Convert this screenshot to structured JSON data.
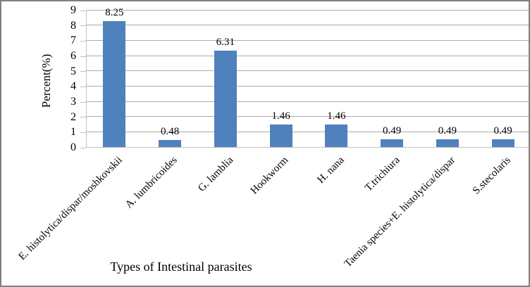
{
  "chart_data": {
    "type": "bar",
    "title": "",
    "ylabel": "Percent(%)",
    "xlabel": "Types of Intestinal parasites",
    "categories": [
      "E. histolytica/dispar/moshkovskii",
      "A. lumbricoides",
      "G. lamblia",
      "Hookworm",
      "H. nana",
      "T.trichiura",
      "Taenia species+E. histolytica/dispar",
      "S.stecolaris"
    ],
    "values": [
      8.25,
      0.48,
      6.31,
      1.46,
      1.46,
      0.49,
      0.49,
      0.49
    ],
    "data_labels": [
      "8.25",
      "0.48",
      "6.31",
      "1.46",
      "1.46",
      "0.49",
      "0.49",
      "0.49"
    ],
    "ylim": [
      0,
      9
    ],
    "yticks": [
      0,
      1,
      2,
      3,
      4,
      5,
      6,
      7,
      8,
      9
    ],
    "grid": true,
    "legend": false,
    "layout_hints": {
      "bar_labels_position": "above bars",
      "x_labels_rotation_deg": 45,
      "legend_position": "none"
    },
    "colors": {
      "bar": "#4F81BD",
      "gridline": "#ABABAB",
      "axis": "#BFBFBF",
      "frame_border": "#808080",
      "text": "#000000"
    }
  }
}
